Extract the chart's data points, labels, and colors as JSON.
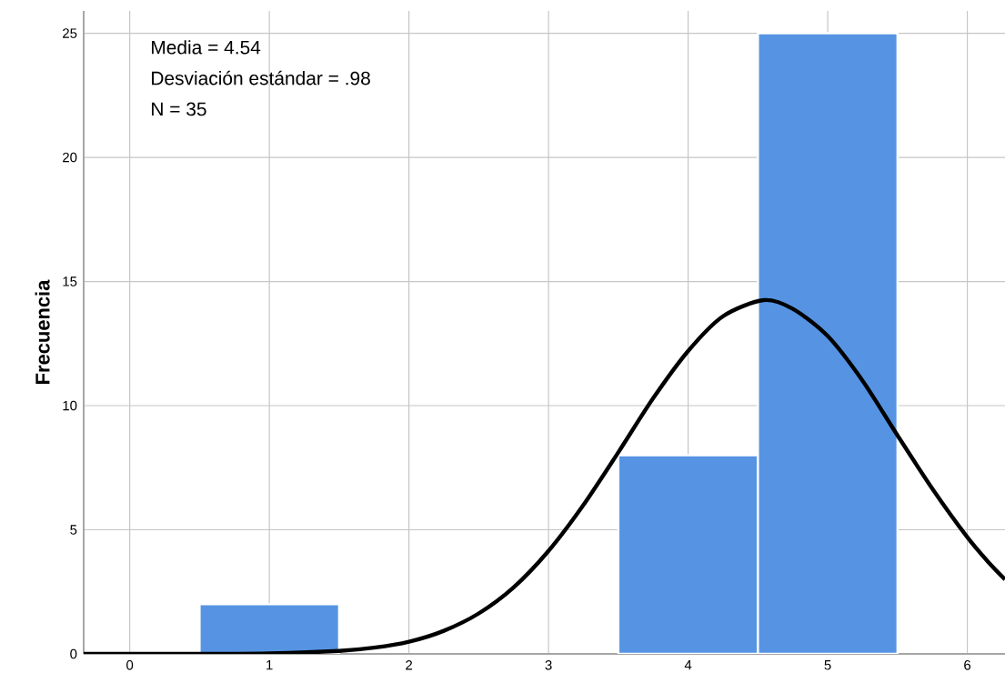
{
  "chart_data": {
    "type": "histogram",
    "ylabel": "Frecuencia",
    "annotations": [
      "Media = 4.54",
      "Desviación estándar = .98",
      "N = 35"
    ],
    "bins": [
      0.5,
      1.5,
      2.5,
      3.5,
      4.5,
      5.5
    ],
    "values": [
      2,
      0,
      0,
      8,
      25
    ],
    "color": "#5694e3",
    "series": [
      {
        "type": "line",
        "color": "#000000",
        "x": [
          -0.33,
          0,
          0.5,
          1,
          1.5,
          1.75,
          2,
          2.25,
          2.5,
          2.75,
          3,
          3.25,
          3.5,
          3.75,
          4,
          4.25,
          4.54,
          4.75,
          5,
          5.25,
          5.5,
          5.75,
          6,
          6.15,
          6.27
        ],
        "values": [
          0,
          0,
          0,
          0.02,
          0.12,
          0.25,
          0.49,
          0.93,
          1.63,
          2.68,
          4.15,
          6.0,
          8.12,
          10.3,
          12.2,
          13.6,
          14.25,
          13.9,
          12.8,
          11.0,
          8.8,
          6.65,
          4.7,
          3.7,
          3.0
        ]
      }
    ],
    "xlim": [
      -0.33,
      6.27
    ],
    "ylim": [
      0,
      25.9
    ],
    "xticks": [
      0,
      1,
      2,
      3,
      4,
      5,
      6
    ],
    "yticks": [
      0,
      5,
      10,
      15,
      20,
      25
    ],
    "grid": true
  }
}
